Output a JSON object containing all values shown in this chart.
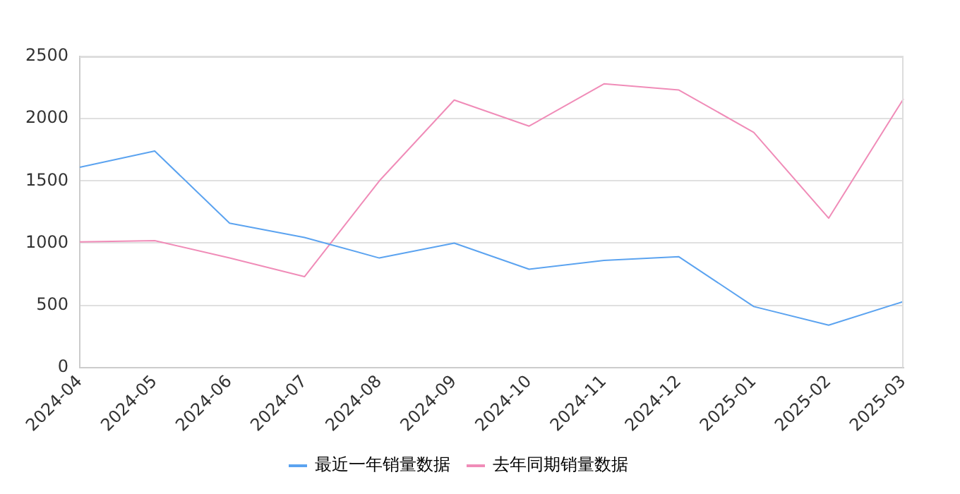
{
  "chart_data": {
    "type": "line",
    "categories": [
      "2024-04",
      "2024-05",
      "2024-06",
      "2024-07",
      "2024-08",
      "2024-09",
      "2024-10",
      "2024-11",
      "2024-12",
      "2025-01",
      "2025-02",
      "2025-03"
    ],
    "series": [
      {
        "name": "最近一年销量数据",
        "color": "#5ba3f0",
        "values": [
          1610,
          1740,
          1160,
          1045,
          880,
          1000,
          790,
          860,
          890,
          490,
          340,
          530
        ]
      },
      {
        "name": "去年同期销量数据",
        "color": "#f08cb8",
        "values": [
          1010,
          1020,
          880,
          730,
          1500,
          2150,
          1940,
          2280,
          2230,
          1890,
          1200,
          2160
        ]
      }
    ],
    "ylim": [
      0,
      2500
    ],
    "yticks": [
      0,
      500,
      1000,
      1500,
      2000,
      2500
    ],
    "grid": "y",
    "legend": "bottom",
    "marker": "none",
    "line_style": "solid"
  }
}
